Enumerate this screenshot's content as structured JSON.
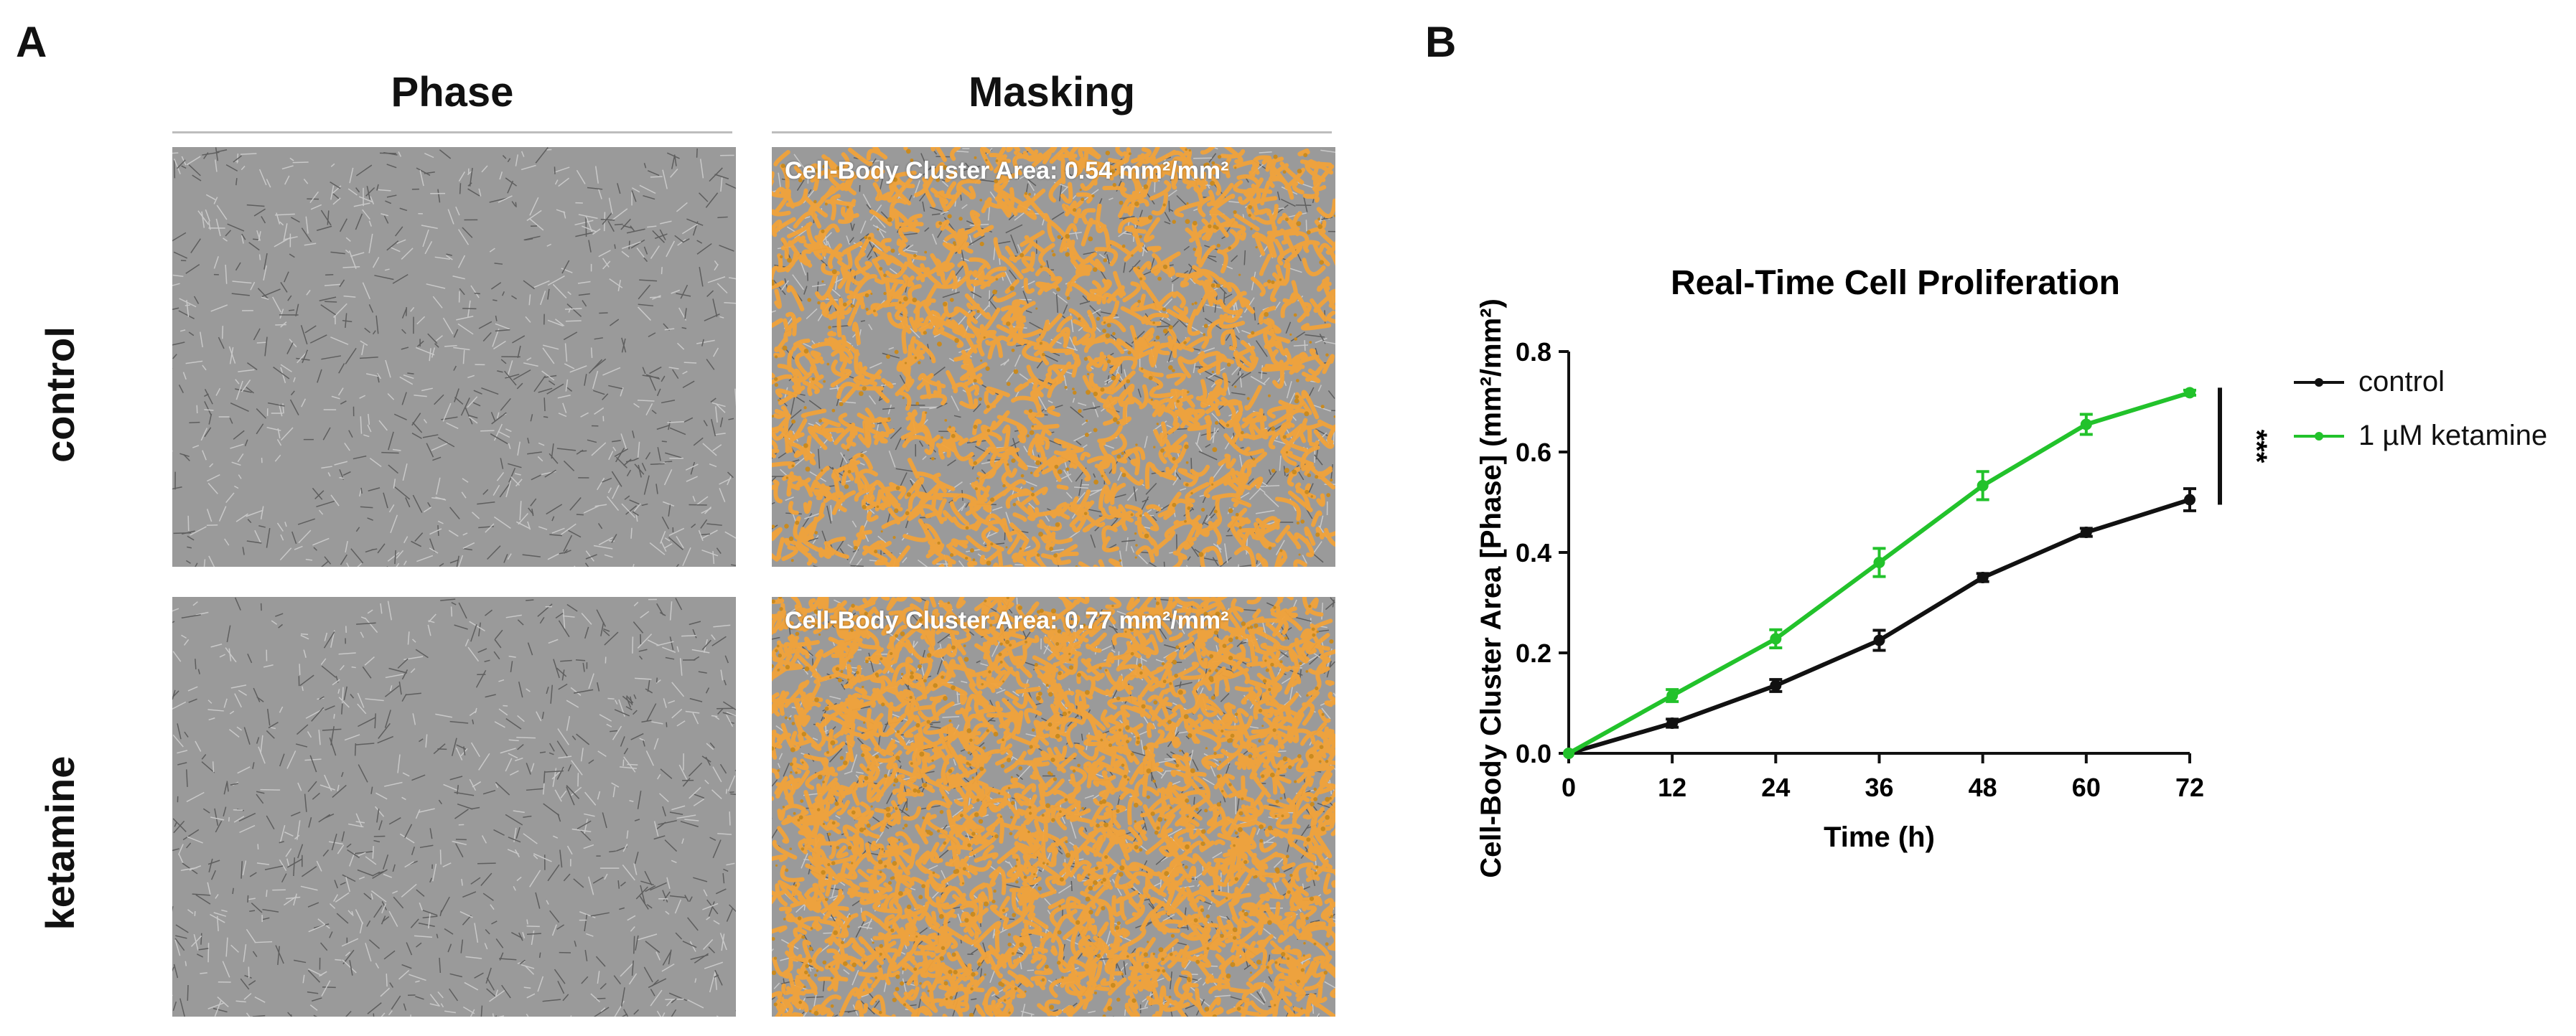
{
  "panel_a": {
    "letter": "A",
    "columns": [
      "Phase",
      "Masking"
    ],
    "rows": [
      "control",
      "ketamine"
    ],
    "mask_labels": [
      "Cell-Body Cluster Area: 0.54 mm²/mm²",
      "Cell-Body Cluster Area: 0.77 mm²/mm²"
    ],
    "phase_color": "#9a9a9a",
    "mask_color": "#f2a33a"
  },
  "panel_b": {
    "letter": "B"
  },
  "chart_data": {
    "type": "line",
    "title": "Real-Time Cell Proliferation",
    "xlabel": "Time (h)",
    "ylabel": "Cell-Body Cluster Area [Phase] (mm²/mm²)",
    "x": [
      0,
      12,
      24,
      36,
      48,
      60,
      72
    ],
    "xticks": [
      "0",
      "12",
      "24",
      "36",
      "48",
      "60",
      "72"
    ],
    "yticks": [
      "0.0",
      "0.2",
      "0.4",
      "0.6",
      "0.8"
    ],
    "xlim": [
      0,
      72
    ],
    "ylim": [
      0,
      0.8
    ],
    "series": [
      {
        "name": "control",
        "color": "#111111",
        "values": [
          0.0,
          0.06,
          0.135,
          0.225,
          0.35,
          0.44,
          0.505
        ],
        "errors": [
          0.0,
          0.008,
          0.012,
          0.02,
          0.008,
          0.008,
          0.022
        ]
      },
      {
        "name": "1 µM ketamine",
        "color": "#22c22b",
        "values": [
          0.0,
          0.115,
          0.228,
          0.38,
          0.533,
          0.655,
          0.718
        ],
        "errors": [
          0.0,
          0.012,
          0.018,
          0.028,
          0.028,
          0.02,
          0.005
        ]
      }
    ],
    "significance": "***",
    "legend": "right"
  }
}
